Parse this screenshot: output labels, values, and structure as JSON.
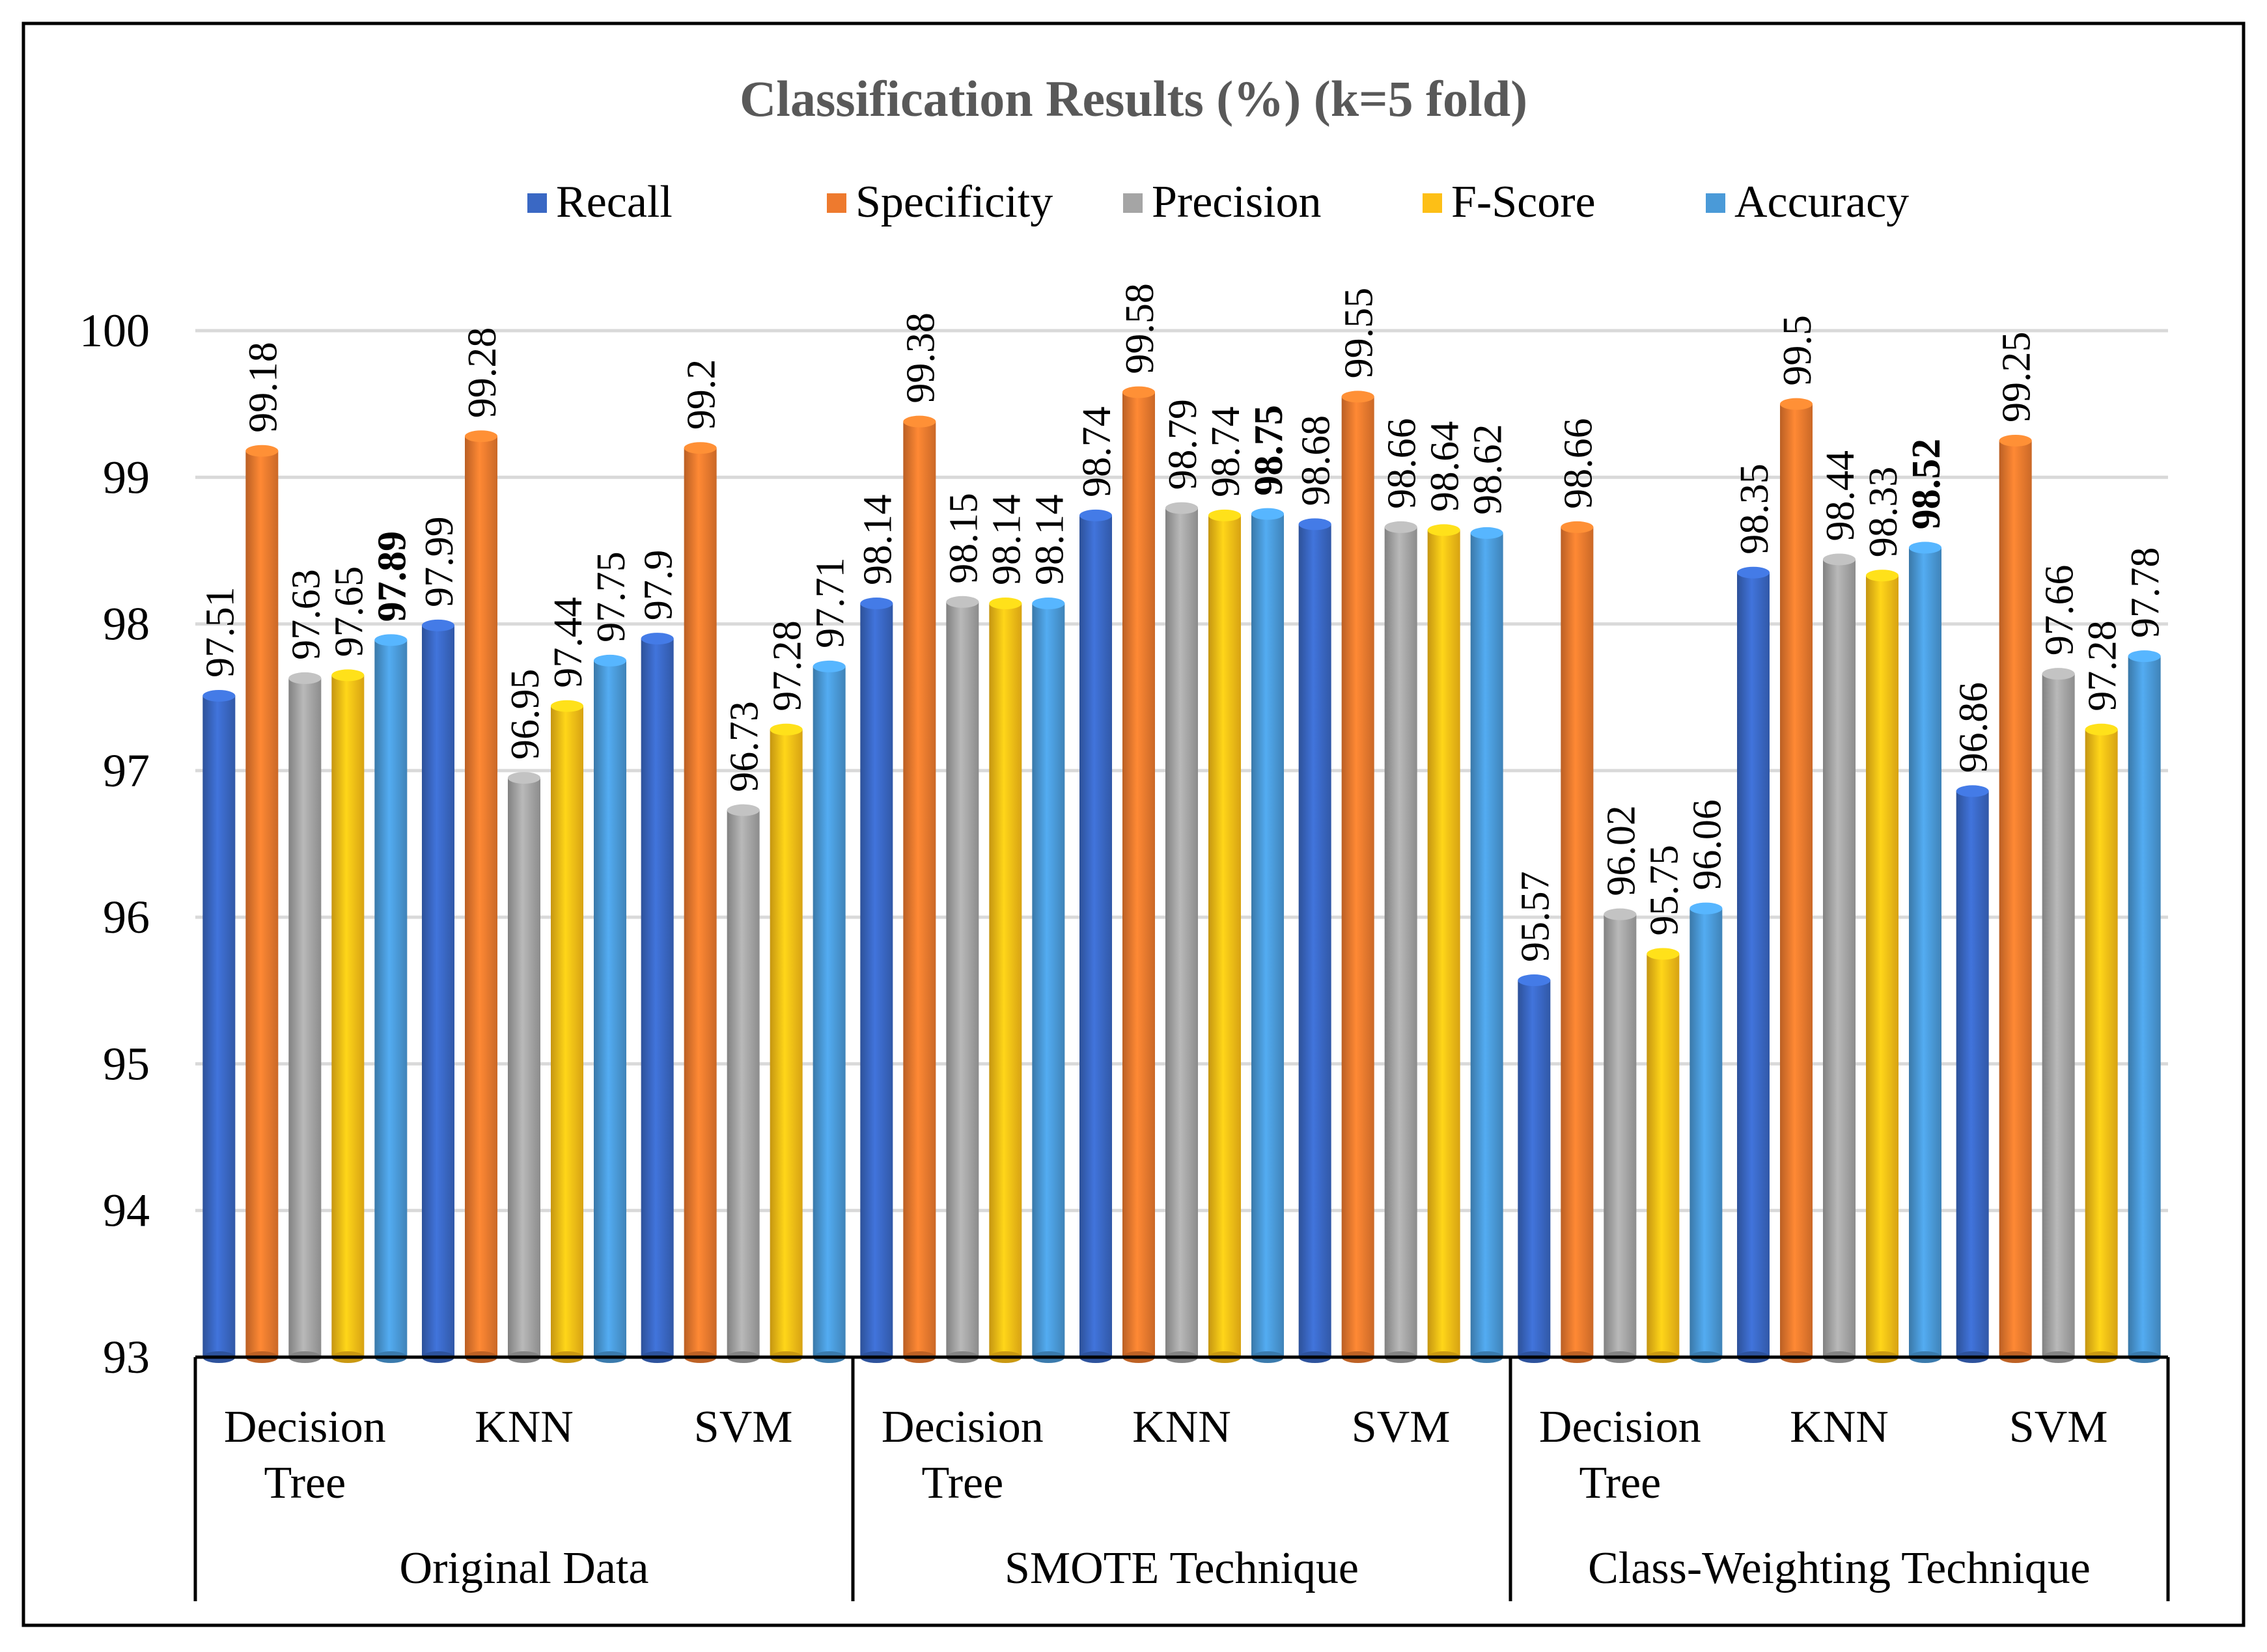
{
  "chart_data": {
    "type": "bar",
    "title": "Classification Results (%) (k=5 fold)",
    "xlabel": "",
    "ylabel": "",
    "ylim": [
      93,
      100
    ],
    "yticks": [
      93,
      94,
      95,
      96,
      97,
      98,
      99,
      100
    ],
    "grid": true,
    "legend_position": "top",
    "groups": [
      {
        "label": "Original Data",
        "categories": [
          "Decision\nTree",
          "KNN",
          "SVM"
        ]
      },
      {
        "label": "SMOTE Technique",
        "categories": [
          "Decision\nTree",
          "KNN",
          "SVM"
        ]
      },
      {
        "label": "Class-Weighting Technique",
        "categories": [
          "Decision\nTree",
          "KNN",
          "SVM"
        ]
      }
    ],
    "categories": [
      "Decision Tree",
      "KNN",
      "SVM",
      "Decision Tree",
      "KNN",
      "SVM",
      "Decision Tree",
      "KNN",
      "SVM"
    ],
    "series": [
      {
        "name": "Recall",
        "color": "#3a68c4",
        "values": [
          97.51,
          97.99,
          97.9,
          98.14,
          98.74,
          98.68,
          95.57,
          98.35,
          96.86
        ]
      },
      {
        "name": "Specificity",
        "color": "#ee7a2e",
        "values": [
          99.18,
          99.28,
          99.2,
          99.38,
          99.58,
          99.55,
          98.66,
          99.5,
          99.25
        ]
      },
      {
        "name": "Precision",
        "color": "#a5a5a5",
        "values": [
          97.63,
          96.95,
          96.73,
          98.15,
          98.79,
          98.66,
          96.02,
          98.44,
          97.66
        ]
      },
      {
        "name": "F-Score",
        "color": "#fdbf16",
        "values": [
          97.65,
          97.44,
          97.28,
          98.14,
          98.74,
          98.64,
          95.75,
          98.33,
          97.28
        ]
      },
      {
        "name": "Accuracy",
        "color": "#4a9ad8",
        "values": [
          97.89,
          97.75,
          97.71,
          98.14,
          98.75,
          98.62,
          96.06,
          98.52,
          97.78
        ]
      }
    ],
    "data_labels": [
      [
        "97.51",
        "99.18",
        "97.63",
        "97.65",
        "97.89"
      ],
      [
        "97.99",
        "99.28",
        "96.95",
        "97.44",
        "97.75"
      ],
      [
        "97.9",
        "99.2",
        "96.73",
        "97.28",
        "97.71"
      ],
      [
        "98.14",
        "99.38",
        "98.15",
        "98.14",
        "98.14"
      ],
      [
        "98.74",
        "99.58",
        "98.79",
        "98.74",
        "98.75"
      ],
      [
        "98.68",
        "99.55",
        "98.66",
        "98.64",
        "98.62"
      ],
      [
        "95.57",
        "98.66",
        "96.02",
        "95.75",
        "96.06"
      ],
      [
        "98.35",
        "99.5",
        "98.44",
        "98.33",
        "98.52"
      ],
      [
        "96.86",
        "99.25",
        "97.66",
        "97.28",
        "97.78"
      ]
    ],
    "bold_labels": [
      [
        0,
        4
      ],
      [
        4,
        4
      ],
      [
        7,
        4
      ]
    ]
  }
}
